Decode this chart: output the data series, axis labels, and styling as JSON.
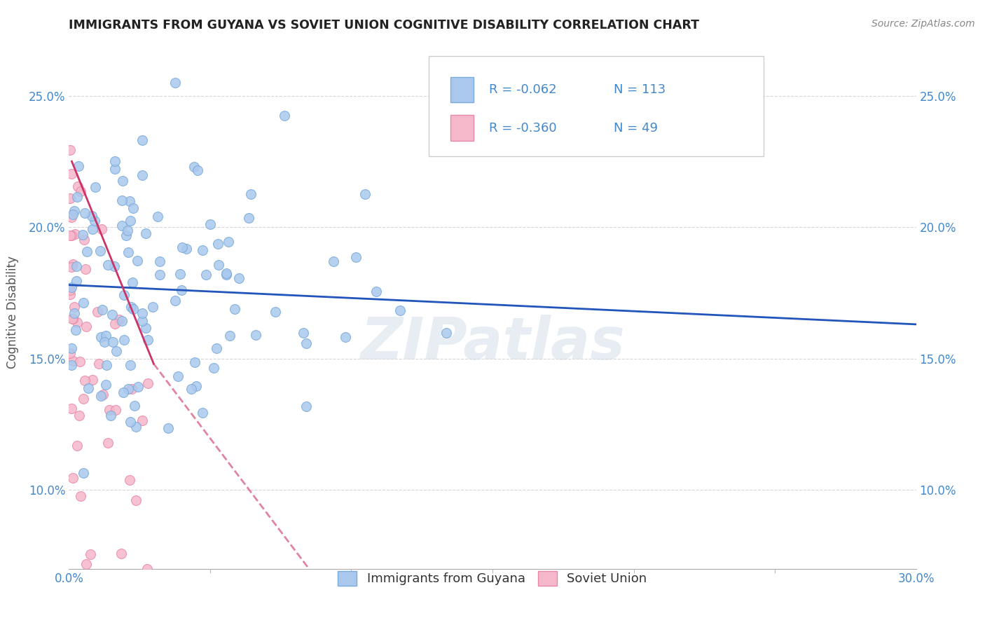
{
  "title": "IMMIGRANTS FROM GUYANA VS SOVIET UNION COGNITIVE DISABILITY CORRELATION CHART",
  "source": "Source: ZipAtlas.com",
  "ylabel_label": "Cognitive Disability",
  "xlim": [
    0.0,
    0.3
  ],
  "ylim": [
    0.07,
    0.265
  ],
  "xticks": [
    0.0,
    0.3
  ],
  "xticklabels": [
    "0.0%",
    "30.0%"
  ],
  "yticks": [
    0.1,
    0.15,
    0.2,
    0.25
  ],
  "yticklabels": [
    "10.0%",
    "15.0%",
    "20.0%",
    "25.0%"
  ],
  "blue_color": "#aac8ee",
  "pink_color": "#f5b8cb",
  "blue_edge": "#7aaad8",
  "pink_edge": "#e888a8",
  "blue_line_color": "#2255bb",
  "pink_line_color": "#cc3366",
  "legend_R_blue": "R = -0.062",
  "legend_N_blue": "N = 113",
  "legend_R_pink": "R = -0.360",
  "legend_N_pink": "N = 49",
  "label_guyana": "Immigrants from Guyana",
  "label_soviet": "Soviet Union",
  "watermark": "ZIPatlas",
  "blue_R": -0.062,
  "blue_N": 113,
  "pink_R": -0.36,
  "pink_N": 49,
  "marker_size": 100,
  "background_color": "#ffffff",
  "grid_color": "#cccccc",
  "title_color": "#222222",
  "axis_label_color": "#555555",
  "tick_color": "#4488cc",
  "legend_text_color": "#4488cc",
  "blue_trend_start_y": 0.178,
  "blue_trend_end_y": 0.163,
  "pink_trend_start_y": 0.225,
  "pink_trend_end_x": 0.085
}
